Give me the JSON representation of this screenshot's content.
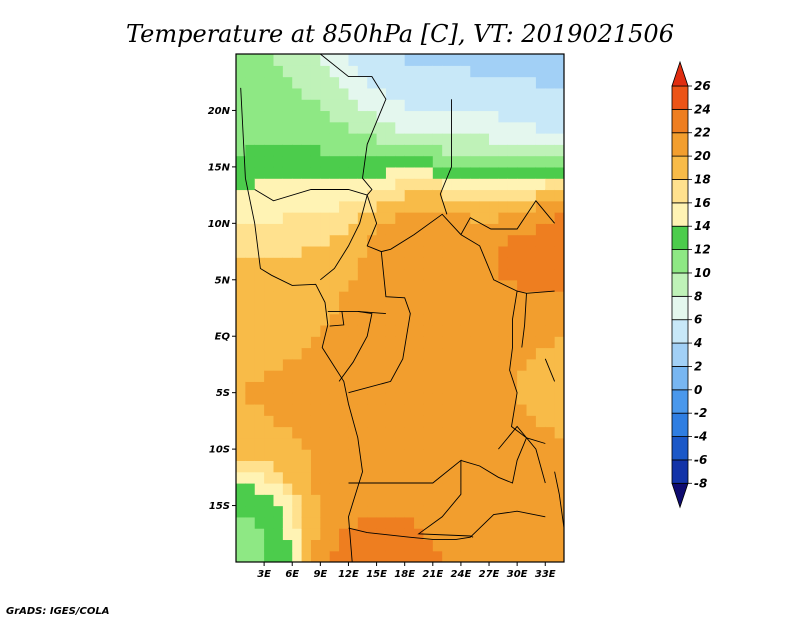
{
  "chart_data": {
    "type": "heatmap",
    "title": "Temperature at 850hPa [C], VT: 2019021506",
    "xlabel": "",
    "ylabel": "",
    "x_ticks": [
      "3E",
      "6E",
      "9E",
      "12E",
      "15E",
      "18E",
      "21E",
      "24E",
      "27E",
      "30E",
      "33E"
    ],
    "y_ticks": [
      "20N",
      "15N",
      "10N",
      "5N",
      "EQ",
      "5S",
      "10S",
      "15S"
    ],
    "xlim": [
      0,
      35
    ],
    "ylim": [
      -20,
      25
    ],
    "colorbar": {
      "labels": [
        "-8",
        "-6",
        "-4",
        "-2",
        "0",
        "2",
        "4",
        "6",
        "8",
        "10",
        "12",
        "14",
        "16",
        "18",
        "20",
        "22",
        "24",
        "26"
      ],
      "colors": [
        "#0e0b70",
        "#1233a8",
        "#1b58c8",
        "#2f7ee2",
        "#4a98ec",
        "#78b6f1",
        "#a2d0f6",
        "#c8e8f8",
        "#e4f7ee",
        "#bff2b8",
        "#8ee884",
        "#4ccc4c",
        "#fff3b4",
        "#ffe18e",
        "#f8bb48",
        "#f29e2e",
        "#ee7e20",
        "#ec5417",
        "#e02d10"
      ]
    },
    "regions": [
      {
        "x": 2,
        "y": 22,
        "temp": 10,
        "spread": 5
      },
      {
        "x": 6,
        "y": 17,
        "temp": 11,
        "spread": 5
      },
      {
        "x": 12,
        "y": 17,
        "temp": 11,
        "spread": 4
      },
      {
        "x": 16,
        "y": 25,
        "temp": 3,
        "spread": 5
      },
      {
        "x": 25,
        "y": 25,
        "temp": 2,
        "spread": 6
      },
      {
        "x": 31,
        "y": 23,
        "temp": 4,
        "spread": 4
      },
      {
        "x": 20,
        "y": 20,
        "temp": 6,
        "spread": 4
      },
      {
        "x": 27,
        "y": 17,
        "temp": 9,
        "spread": 4
      },
      {
        "x": 5,
        "y": 12,
        "temp": 16,
        "spread": 4
      },
      {
        "x": 20,
        "y": 10,
        "temp": 23,
        "spread": 5
      },
      {
        "x": 31,
        "y": 8,
        "temp": 24,
        "spread": 4
      },
      {
        "x": 23,
        "y": 5,
        "temp": 22,
        "spread": 5
      },
      {
        "x": 9,
        "y": 7,
        "temp": 19,
        "spread": 5
      },
      {
        "x": 5,
        "y": 0,
        "temp": 20,
        "spread": 6
      },
      {
        "x": 17,
        "y": 0,
        "temp": 21,
        "spread": 6
      },
      {
        "x": 28,
        "y": 0,
        "temp": 20,
        "spread": 5
      },
      {
        "x": 12,
        "y": -8,
        "temp": 20,
        "spread": 6
      },
      {
        "x": 26,
        "y": -10,
        "temp": 21,
        "spread": 5
      },
      {
        "x": 15,
        "y": -18,
        "temp": 23,
        "spread": 4
      },
      {
        "x": 2,
        "y": -17,
        "temp": 11,
        "spread": 3
      },
      {
        "x": 33,
        "y": -4,
        "temp": 19,
        "spread": 3
      }
    ]
  },
  "footer": {
    "credit": "GrADS: IGES/COLA"
  }
}
